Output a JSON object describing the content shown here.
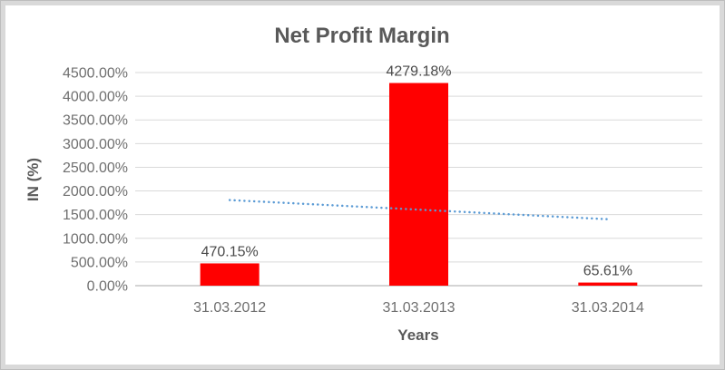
{
  "frame": {
    "border_color": "#bdbdbd",
    "mat_color": "#d9d9d9",
    "background": "#ffffff"
  },
  "chart_data": {
    "type": "bar",
    "title": "Net Profit Margin",
    "xlabel": "Years",
    "ylabel": "IN (%)",
    "categories": [
      "31.03.2012",
      "31.03.2013",
      "31.03.2014"
    ],
    "series": [
      {
        "name": "Net Profit Margin",
        "color": "#FF0000",
        "values": [
          470.15,
          4279.18,
          65.61
        ]
      }
    ],
    "data_labels": [
      "470.15%",
      "4279.18%",
      "65.61%"
    ],
    "ylim": [
      0,
      4500
    ],
    "ytick_step": 500,
    "ytick_labels": [
      "0.00%",
      "500.00%",
      "1000.00%",
      "1500.00%",
      "2000.00%",
      "2500.00%",
      "3000.00%",
      "3500.00%",
      "4000.00%",
      "4500.00%"
    ],
    "grid": true,
    "legend": "none",
    "gridline_color": "#d9d9d9",
    "axis_line_color": "#c6c6c6",
    "text_colors": {
      "title": "#595959",
      "axis_title": "#595959",
      "tick": "#6f6f6f",
      "data_label": "#4a4a4a"
    },
    "trendline": {
      "style": "dotted",
      "color": "#5B9BD5",
      "start_value": 1807.25,
      "end_value": 1402.71
    }
  }
}
